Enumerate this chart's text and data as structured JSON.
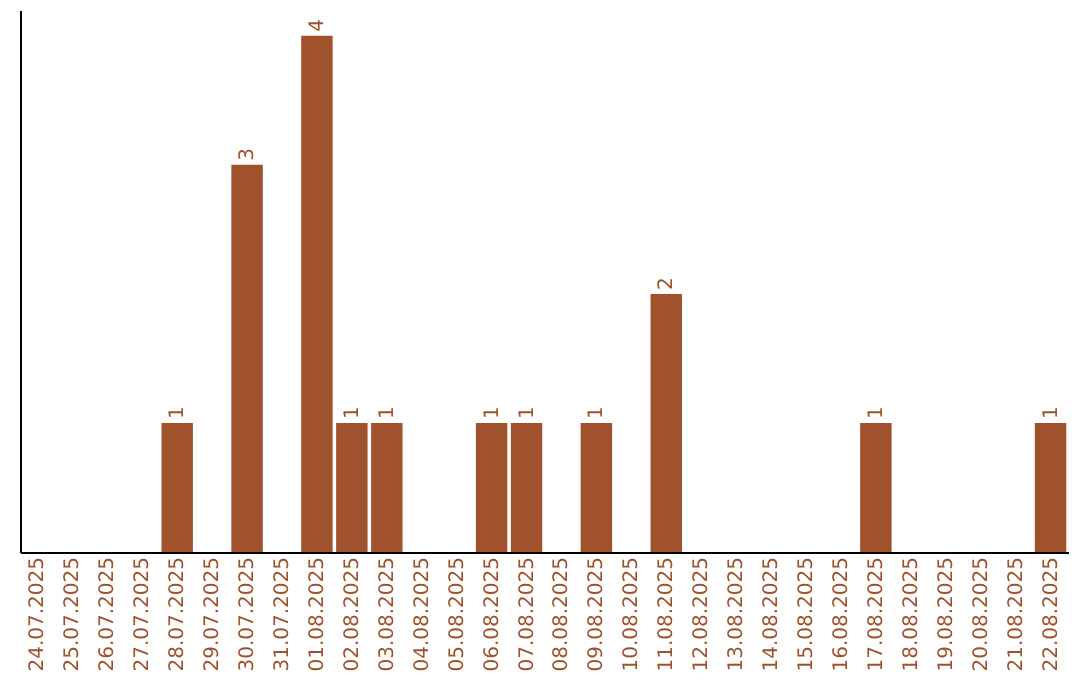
{
  "chart_data": {
    "type": "bar",
    "categories": [
      "24.07.2025",
      "25.07.2025",
      "26.07.2025",
      "27.07.2025",
      "28.07.2025",
      "29.07.2025",
      "30.07.2025",
      "31.07.2025",
      "01.08.2025",
      "02.08.2025",
      "03.08.2025",
      "04.08.2025",
      "05.08.2025",
      "06.08.2025",
      "07.08.2025",
      "08.08.2025",
      "09.08.2025",
      "10.08.2025",
      "11.08.2025",
      "12.08.2025",
      "13.08.2025",
      "14.08.2025",
      "15.08.2025",
      "16.08.2025",
      "17.08.2025",
      "18.08.2025",
      "19.08.2025",
      "20.08.2025",
      "21.08.2025",
      "22.08.2025"
    ],
    "values": [
      0,
      0,
      0,
      0,
      1,
      0,
      3,
      0,
      4,
      1,
      1,
      0,
      0,
      1,
      1,
      0,
      1,
      0,
      2,
      0,
      0,
      0,
      0,
      0,
      1,
      0,
      0,
      0,
      0,
      1
    ],
    "value_labels": [
      null,
      null,
      null,
      null,
      "1",
      null,
      "3",
      null,
      "4",
      "1",
      "1",
      null,
      null,
      "1",
      "1",
      null,
      "1",
      null,
      "2",
      null,
      null,
      null,
      null,
      null,
      "1",
      null,
      null,
      null,
      null,
      "1"
    ],
    "color": "#a0522d",
    "ylim": [
      0,
      4.2
    ],
    "tick_labels": "x",
    "grid": false
  }
}
